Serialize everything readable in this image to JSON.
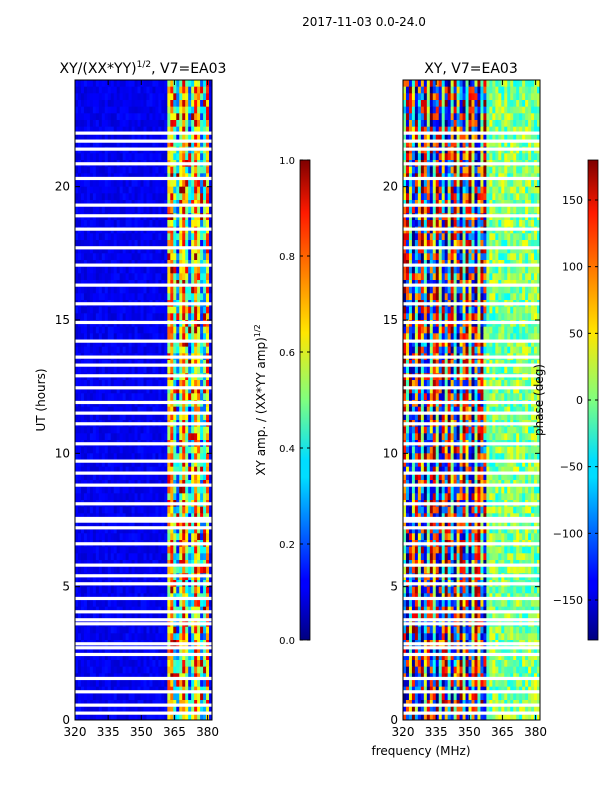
{
  "suptitle": "2017-11-03 0.0-24.0",
  "chart_data": [
    {
      "type": "heatmap",
      "title": "XY/(XX*YY)^{1/2}, V7=EA03",
      "title_main": "XY/(XX*YY)",
      "title_exp": "1/2",
      "title_tail": ", V7=EA03",
      "xlabel": "",
      "ylabel": "UT (hours)",
      "xlim": [
        320,
        382
      ],
      "ylim": [
        0,
        24
      ],
      "xticks": [
        320,
        335,
        350,
        365,
        380
      ],
      "yticks": [
        0,
        5,
        10,
        15,
        20
      ],
      "colormap": "jet",
      "colorbar": {
        "label": "XY amp. / (XX*YY amp)^{1/2}",
        "label_main": "XY amp. / (XX*YY amp)",
        "label_exp": "1/2",
        "range": [
          0.0,
          1.0
        ],
        "ticks": [
          "0.0",
          "0.2",
          "0.4",
          "0.6",
          "0.8",
          "1.0"
        ],
        "tick_values": [
          0.0,
          0.2,
          0.4,
          0.6,
          0.8,
          1.0
        ]
      }
    },
    {
      "type": "heatmap",
      "title": "XY, V7=EA03",
      "xlabel": "frequency (MHz)",
      "ylabel": "",
      "xlim": [
        320,
        382
      ],
      "ylim": [
        0,
        24
      ],
      "xticks": [
        320,
        335,
        350,
        365,
        380
      ],
      "yticks": [
        0,
        5,
        10,
        15,
        20
      ],
      "colormap": "jet",
      "colorbar": {
        "label": "phase (deg)",
        "range": [
          -180,
          180
        ],
        "ticks": [
          "−150",
          "−100",
          "−50",
          "0",
          "50",
          "100",
          "150"
        ],
        "tick_values": [
          -150,
          -100,
          -50,
          0,
          50,
          100,
          150
        ]
      }
    }
  ],
  "flagged_ut_hours": [
    0.25,
    0.55,
    1.05,
    1.55,
    2.45,
    2.7,
    2.85,
    3.6,
    3.75,
    4.05,
    4.55,
    5.1,
    5.4,
    5.8,
    6.6,
    7.2,
    7.45,
    7.55,
    8.1,
    8.8,
    9.25,
    9.7,
    10.35,
    11.1,
    11.5,
    11.9,
    12.45,
    12.9,
    13.3,
    13.6,
    14.2,
    14.9,
    15.6,
    16.3,
    17.05,
    17.7,
    18.4,
    18.9,
    19.3,
    20.3,
    20.85,
    21.4,
    21.7,
    22.0
  ]
}
